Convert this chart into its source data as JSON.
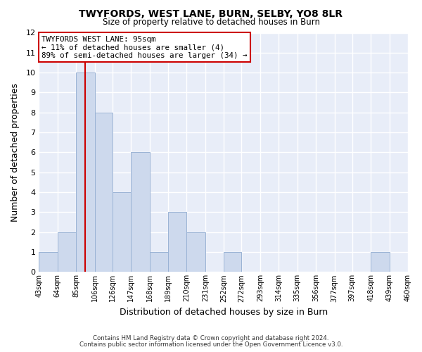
{
  "title": "TWYFORDS, WEST LANE, BURN, SELBY, YO8 8LR",
  "subtitle": "Size of property relative to detached houses in Burn",
  "xlabel": "Distribution of detached houses by size in Burn",
  "ylabel": "Number of detached properties",
  "bin_edges": [
    43,
    64,
    85,
    106,
    126,
    147,
    168,
    189,
    210,
    231,
    252,
    272,
    293,
    314,
    335,
    356,
    377,
    397,
    418,
    439,
    460
  ],
  "bin_labels": [
    "43sqm",
    "64sqm",
    "85sqm",
    "106sqm",
    "126sqm",
    "147sqm",
    "168sqm",
    "189sqm",
    "210sqm",
    "231sqm",
    "252sqm",
    "272sqm",
    "293sqm",
    "314sqm",
    "335sqm",
    "356sqm",
    "377sqm",
    "397sqm",
    "418sqm",
    "439sqm",
    "460sqm"
  ],
  "counts": [
    1,
    2,
    10,
    8,
    4,
    6,
    1,
    3,
    2,
    0,
    1,
    0,
    0,
    0,
    0,
    0,
    0,
    0,
    1,
    0
  ],
  "bar_color": "#cdd9ed",
  "bar_edge_color": "#9ab3d5",
  "redline_x": 95,
  "annotation_title": "TWYFORDS WEST LANE: 95sqm",
  "annotation_line1": "← 11% of detached houses are smaller (4)",
  "annotation_line2": "89% of semi-detached houses are larger (34) →",
  "ylim": [
    0,
    12
  ],
  "yticks": [
    0,
    1,
    2,
    3,
    4,
    5,
    6,
    7,
    8,
    9,
    10,
    11,
    12
  ],
  "background_color": "#e8edf8",
  "grid_color": "#ffffff",
  "footer1": "Contains HM Land Registry data © Crown copyright and database right 2024.",
  "footer2": "Contains public sector information licensed under the Open Government Licence v3.0."
}
